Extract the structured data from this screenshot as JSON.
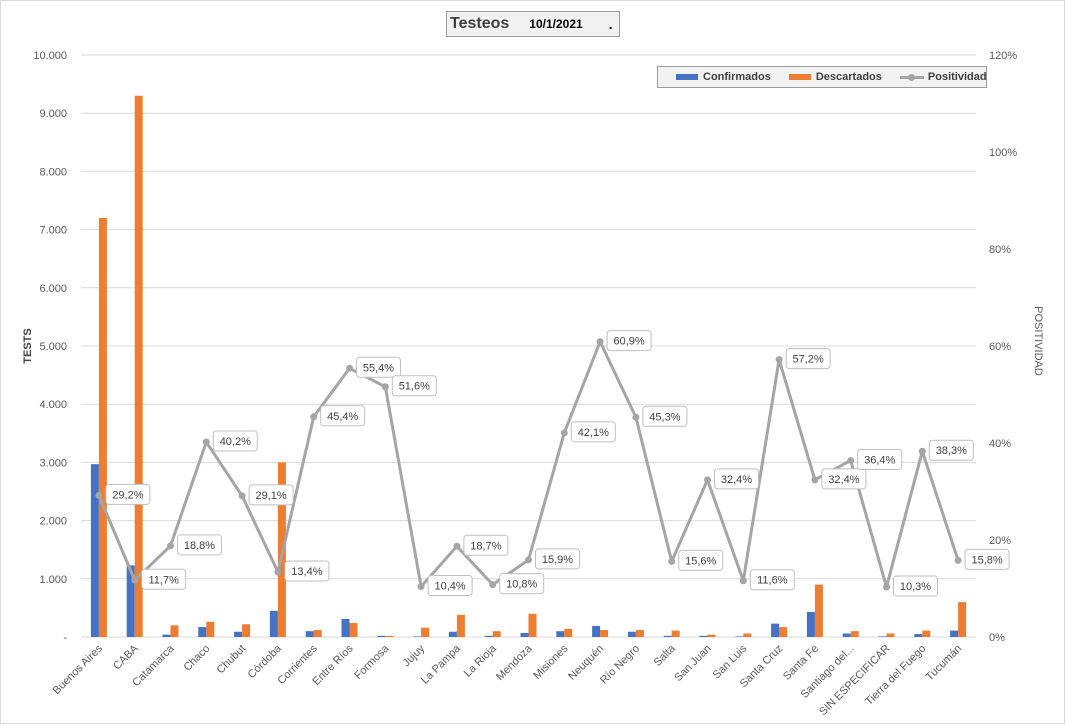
{
  "header": {
    "title": "Testeos",
    "date": "10/1/2021",
    "dot": "."
  },
  "colors": {
    "confirmados": "#4472c4",
    "descartados": "#ed7d31",
    "positividad": "#a5a5a5",
    "grid": "#d9d9d9"
  },
  "chart_data": {
    "type": "bar",
    "title": "Testeos",
    "ylabel": "TESTS",
    "y2label": "POSITIVIDAD",
    "ylim": [
      0,
      10000
    ],
    "y2lim": [
      0,
      120
    ],
    "yticks": [
      "-",
      "1.000",
      "2.000",
      "3.000",
      "4.000",
      "5.000",
      "6.000",
      "7.000",
      "8.000",
      "9.000",
      "10.000"
    ],
    "y2ticks": [
      "0%",
      "20%",
      "40%",
      "60%",
      "80%",
      "100%",
      "120%"
    ],
    "grid": true,
    "legend_position": "top-right",
    "categories": [
      "Buenos Aires",
      "CABA",
      "Catamarca",
      "Chaco",
      "Chubut",
      "Córdoba",
      "Corrientes",
      "Entre Ríos",
      "Formosa",
      "Jujuy",
      "La Pampa",
      "La Rioja",
      "Mendoza",
      "Misiones",
      "Neuquén",
      "Río Negro",
      "Salta",
      "San Juan",
      "San Luis",
      "Santa Cruz",
      "Santa Fe",
      "Santiago del...",
      "SIN ESPECIFICAR",
      "Tierra del Fuego",
      "Tucumán"
    ],
    "series": [
      {
        "name": "Confirmados",
        "kind": "bar",
        "values": [
          2970,
          1230,
          40,
          170,
          90,
          450,
          100,
          310,
          20,
          10,
          90,
          20,
          70,
          100,
          190,
          90,
          20,
          20,
          10,
          230,
          430,
          60,
          10,
          50,
          110
        ]
      },
      {
        "name": "Descartados",
        "kind": "bar",
        "values": [
          7200,
          9300,
          200,
          260,
          220,
          3000,
          120,
          240,
          20,
          160,
          380,
          100,
          400,
          140,
          120,
          120,
          110,
          40,
          60,
          170,
          900,
          100,
          60,
          110,
          600
        ]
      },
      {
        "name": "Positividad",
        "kind": "line",
        "axis": "right",
        "values": [
          29.2,
          11.7,
          18.8,
          40.2,
          29.1,
          13.4,
          45.4,
          55.4,
          51.6,
          10.4,
          18.7,
          10.8,
          15.9,
          42.1,
          60.9,
          45.3,
          15.6,
          32.4,
          11.6,
          57.2,
          32.4,
          36.4,
          10.3,
          38.3,
          15.8
        ]
      }
    ],
    "data_labels": [
      "29,2%",
      "11,7%",
      "18,8%",
      "40,2%",
      "29,1%",
      "13,4%",
      "45,4%",
      "55,4%",
      "51,6%",
      "10,4%",
      "18,7%",
      "10,8%",
      "15,9%",
      "42,1%",
      "60,9%",
      "45,3%",
      "15,6%",
      "32,4%",
      "11,6%",
      "57,2%",
      "32,4%",
      "36,4%",
      "10,3%",
      "38,3%",
      "15,8%"
    ]
  }
}
